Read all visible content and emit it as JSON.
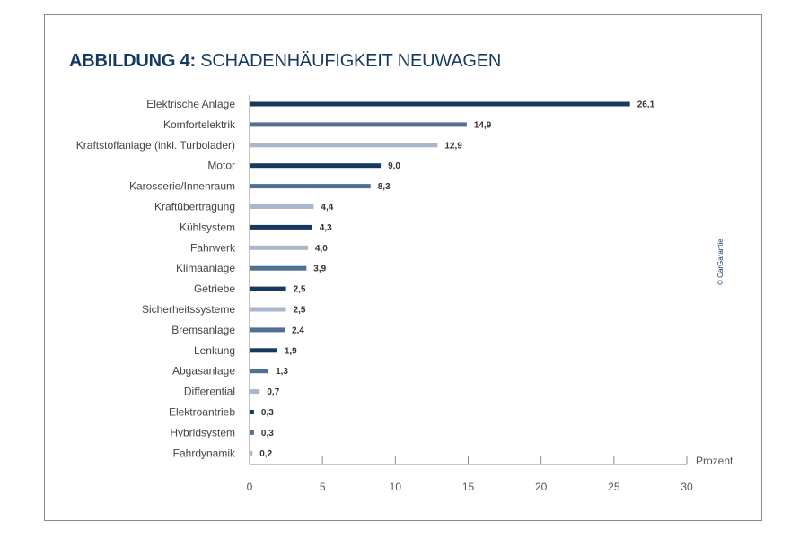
{
  "title": {
    "prefix": "ABBILDUNG 4:",
    "text": "SCHADENHÄUFIGKEIT NEUWAGEN"
  },
  "credit": "© CarGarantie",
  "colors": {
    "dark": "#163a5f",
    "medium": "#4f6f93",
    "light": "#a9b7ca",
    "title": "#163a5f",
    "axis": "#8a8a8a"
  },
  "chart_data": {
    "type": "bar",
    "orientation": "horizontal",
    "categories": [
      "Elektrische Anlage",
      "Komfortelektrik",
      "Kraftstoffanlage (inkl. Turbolader)",
      "Motor",
      "Karosserie/Innenraum",
      "Kraftübertragung",
      "Kühlsystem",
      "Fahrwerk",
      "Klimaanlage",
      "Getriebe",
      "Sicherheitssysteme",
      "Bremsanlage",
      "Lenkung",
      "Abgasanlage",
      "Differential",
      "Elektroantrieb",
      "Hybridsystem",
      "Fahrdynamik"
    ],
    "values": [
      26.1,
      14.9,
      12.9,
      9.0,
      8.3,
      4.4,
      4.3,
      4.0,
      3.9,
      2.5,
      2.5,
      2.4,
      1.9,
      1.3,
      0.7,
      0.3,
      0.3,
      0.2
    ],
    "value_labels": [
      "26,1",
      "14,9",
      "12,9",
      "9,0",
      "8,3",
      "4,4",
      "4,3",
      "4,0",
      "3,9",
      "2,5",
      "2,5",
      "2,4",
      "1,9",
      "1,3",
      "0,7",
      "0,3",
      "0,3",
      "0,2"
    ],
    "bar_colors": [
      "dark",
      "medium",
      "light",
      "dark",
      "medium",
      "light",
      "dark",
      "light",
      "medium",
      "dark",
      "light",
      "medium",
      "dark",
      "medium",
      "light",
      "dark",
      "medium",
      "light"
    ],
    "xlim": [
      0,
      30
    ],
    "xticks": [
      0,
      5,
      10,
      15,
      20,
      25,
      30
    ],
    "xlabel": "Prozent",
    "ylabel": "",
    "grid": false
  }
}
